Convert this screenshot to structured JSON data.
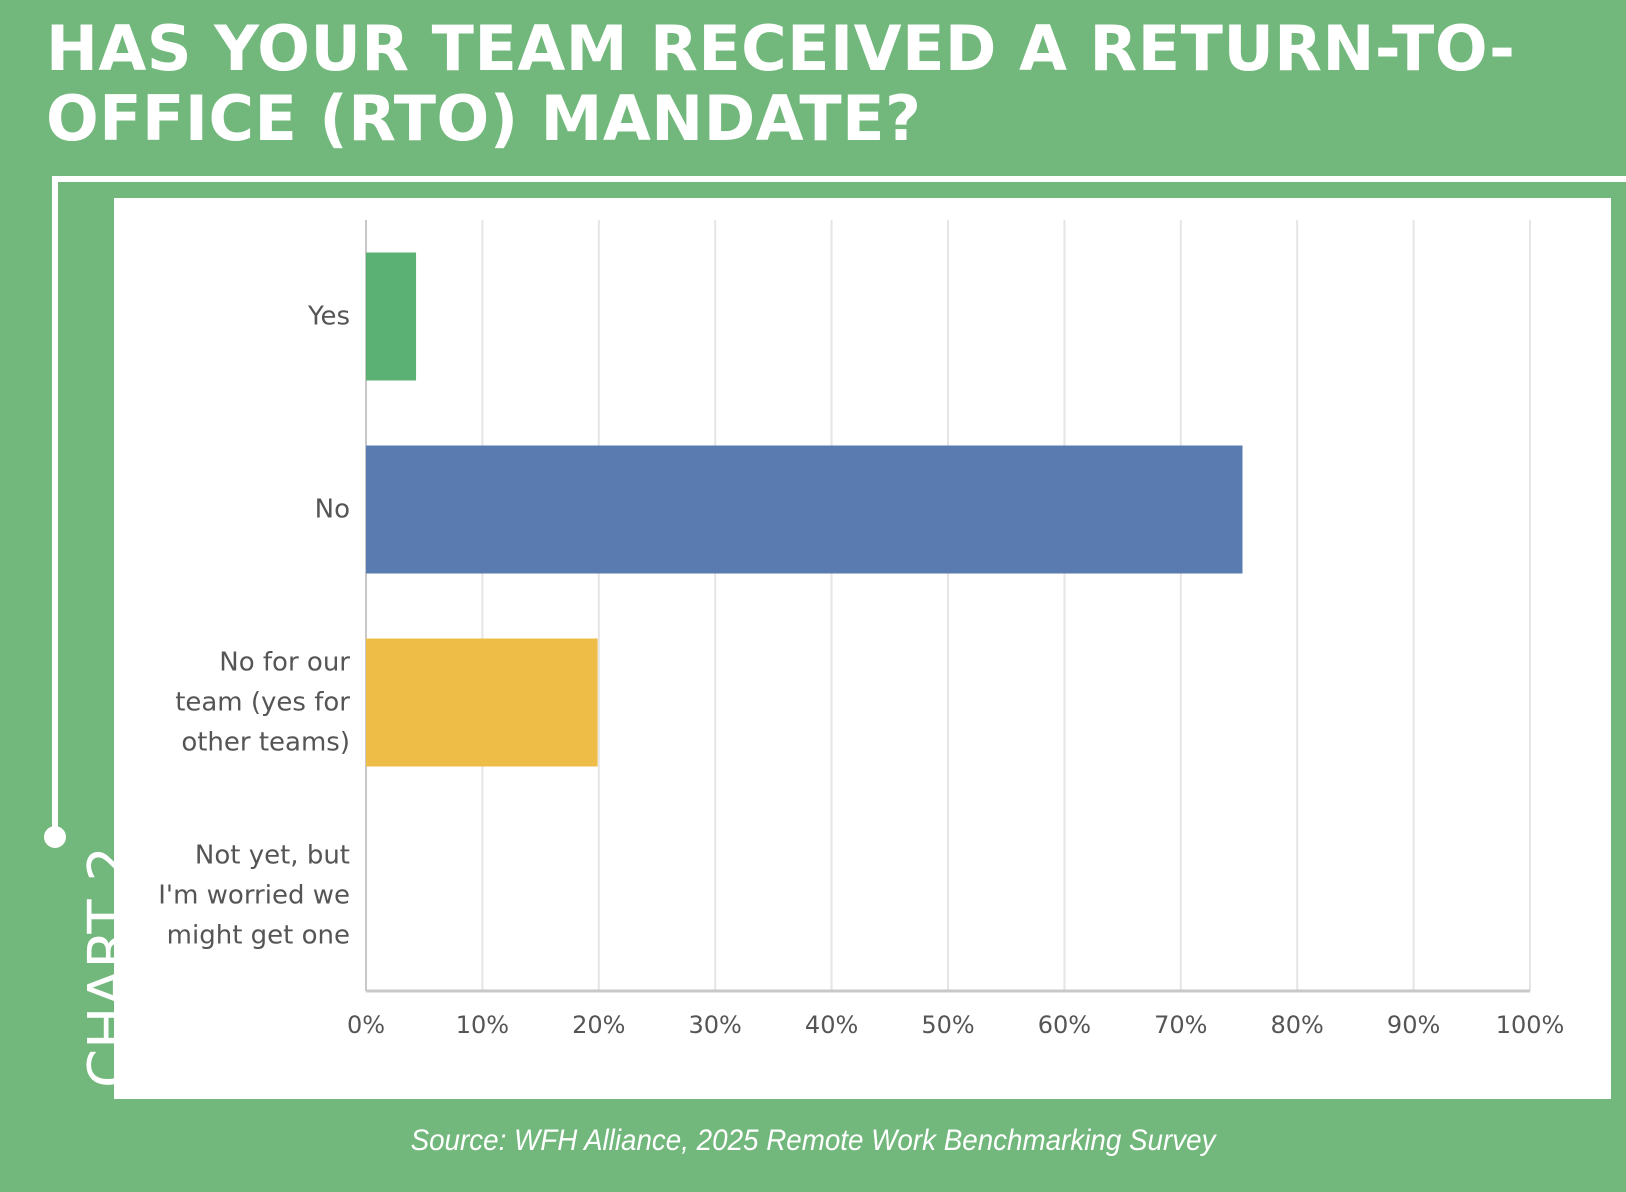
{
  "title": "HAS YOUR TEAM RECEIVED A RETURN-TO-OFFICE (RTO) MANDATE?",
  "side_label": "CHART 2",
  "source": "Source: WFH Alliance, 2025 Remote Work Benchmarking Survey",
  "colors": {
    "background": "#72b87c",
    "panel": "#ffffff",
    "grid": "#e5e5e5",
    "axis": "#c8c8c8",
    "label": "#555555"
  },
  "chart_data": {
    "type": "bar",
    "orientation": "horizontal",
    "categories": [
      [
        "Yes"
      ],
      [
        "No"
      ],
      [
        "No for our",
        "team (yes for",
        "other teams)"
      ],
      [
        "Not yet, but",
        "I'm worried we",
        "might get one"
      ]
    ],
    "values": [
      4.3,
      75.3,
      19.9,
      0
    ],
    "colors": [
      "#5bb174",
      "#5a7bb0",
      "#eebd48",
      "#e05c4b"
    ],
    "xlim": [
      0,
      100
    ],
    "xticks": [
      "0%",
      "10%",
      "20%",
      "30%",
      "40%",
      "50%",
      "60%",
      "70%",
      "80%",
      "90%",
      "100%"
    ],
    "grid": true,
    "legend": "none"
  }
}
